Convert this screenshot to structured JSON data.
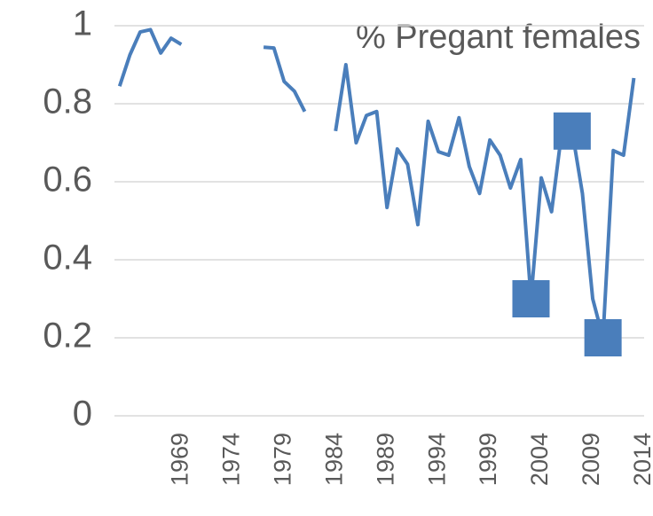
{
  "chart_data": {
    "type": "line",
    "title": "% Pregant females",
    "x": [
      1963,
      1964,
      1965,
      1966,
      1967,
      1968,
      1969,
      1970,
      1971,
      1972,
      1973,
      1974,
      1975,
      1976,
      1977,
      1978,
      1979,
      1980,
      1981,
      1982,
      1983,
      1984,
      1985,
      1986,
      1987,
      1988,
      1989,
      1990,
      1991,
      1992,
      1993,
      1994,
      1995,
      1996,
      1997,
      1998,
      1999,
      2000,
      2001,
      2002,
      2003,
      2004,
      2005,
      2006,
      2007,
      2008,
      2009,
      2010,
      2011,
      2012,
      2013
    ],
    "series": [
      {
        "name": "% Pregant females",
        "color": "#4a7ebb",
        "values": [
          0.845,
          0.925,
          0.984,
          0.99,
          0.93,
          0.968,
          0.952,
          null,
          null,
          null,
          null,
          null,
          null,
          null,
          0.945,
          0.943,
          0.857,
          0.832,
          0.78,
          null,
          null,
          0.73,
          0.9,
          0.7,
          0.77,
          0.78,
          0.534,
          0.684,
          0.645,
          0.49,
          0.755,
          0.677,
          0.668,
          0.764,
          0.639,
          0.57,
          0.707,
          0.668,
          0.584,
          0.657,
          0.3,
          0.61,
          0.523,
          0.73,
          0.73,
          0.57,
          0.3,
          0.2,
          0.68,
          0.668,
          0.866
        ]
      },
      {
        "color": "#4a7ebb",
        "marker": "square",
        "values": [
          null,
          null,
          null,
          null,
          null,
          null,
          null,
          null,
          null,
          null,
          null,
          null,
          null,
          null,
          null,
          null,
          null,
          null,
          null,
          null,
          null,
          null,
          null,
          null,
          null,
          null,
          null,
          null,
          null,
          null,
          null,
          null,
          null,
          null,
          null,
          null,
          null,
          null,
          null,
          null,
          0.3,
          null,
          null,
          null,
          0.73,
          null,
          null,
          0.2,
          null,
          null,
          null
        ]
      }
    ],
    "xlim": [
      1962.5,
      2014
    ],
    "xticks": [
      1969,
      1974,
      1979,
      1984,
      1989,
      1994,
      1999,
      2004,
      2009,
      2014
    ],
    "ylim": [
      0,
      1
    ],
    "yticks": [
      0,
      0.2,
      0.4,
      0.6,
      0.8,
      1
    ],
    "grid": true
  }
}
